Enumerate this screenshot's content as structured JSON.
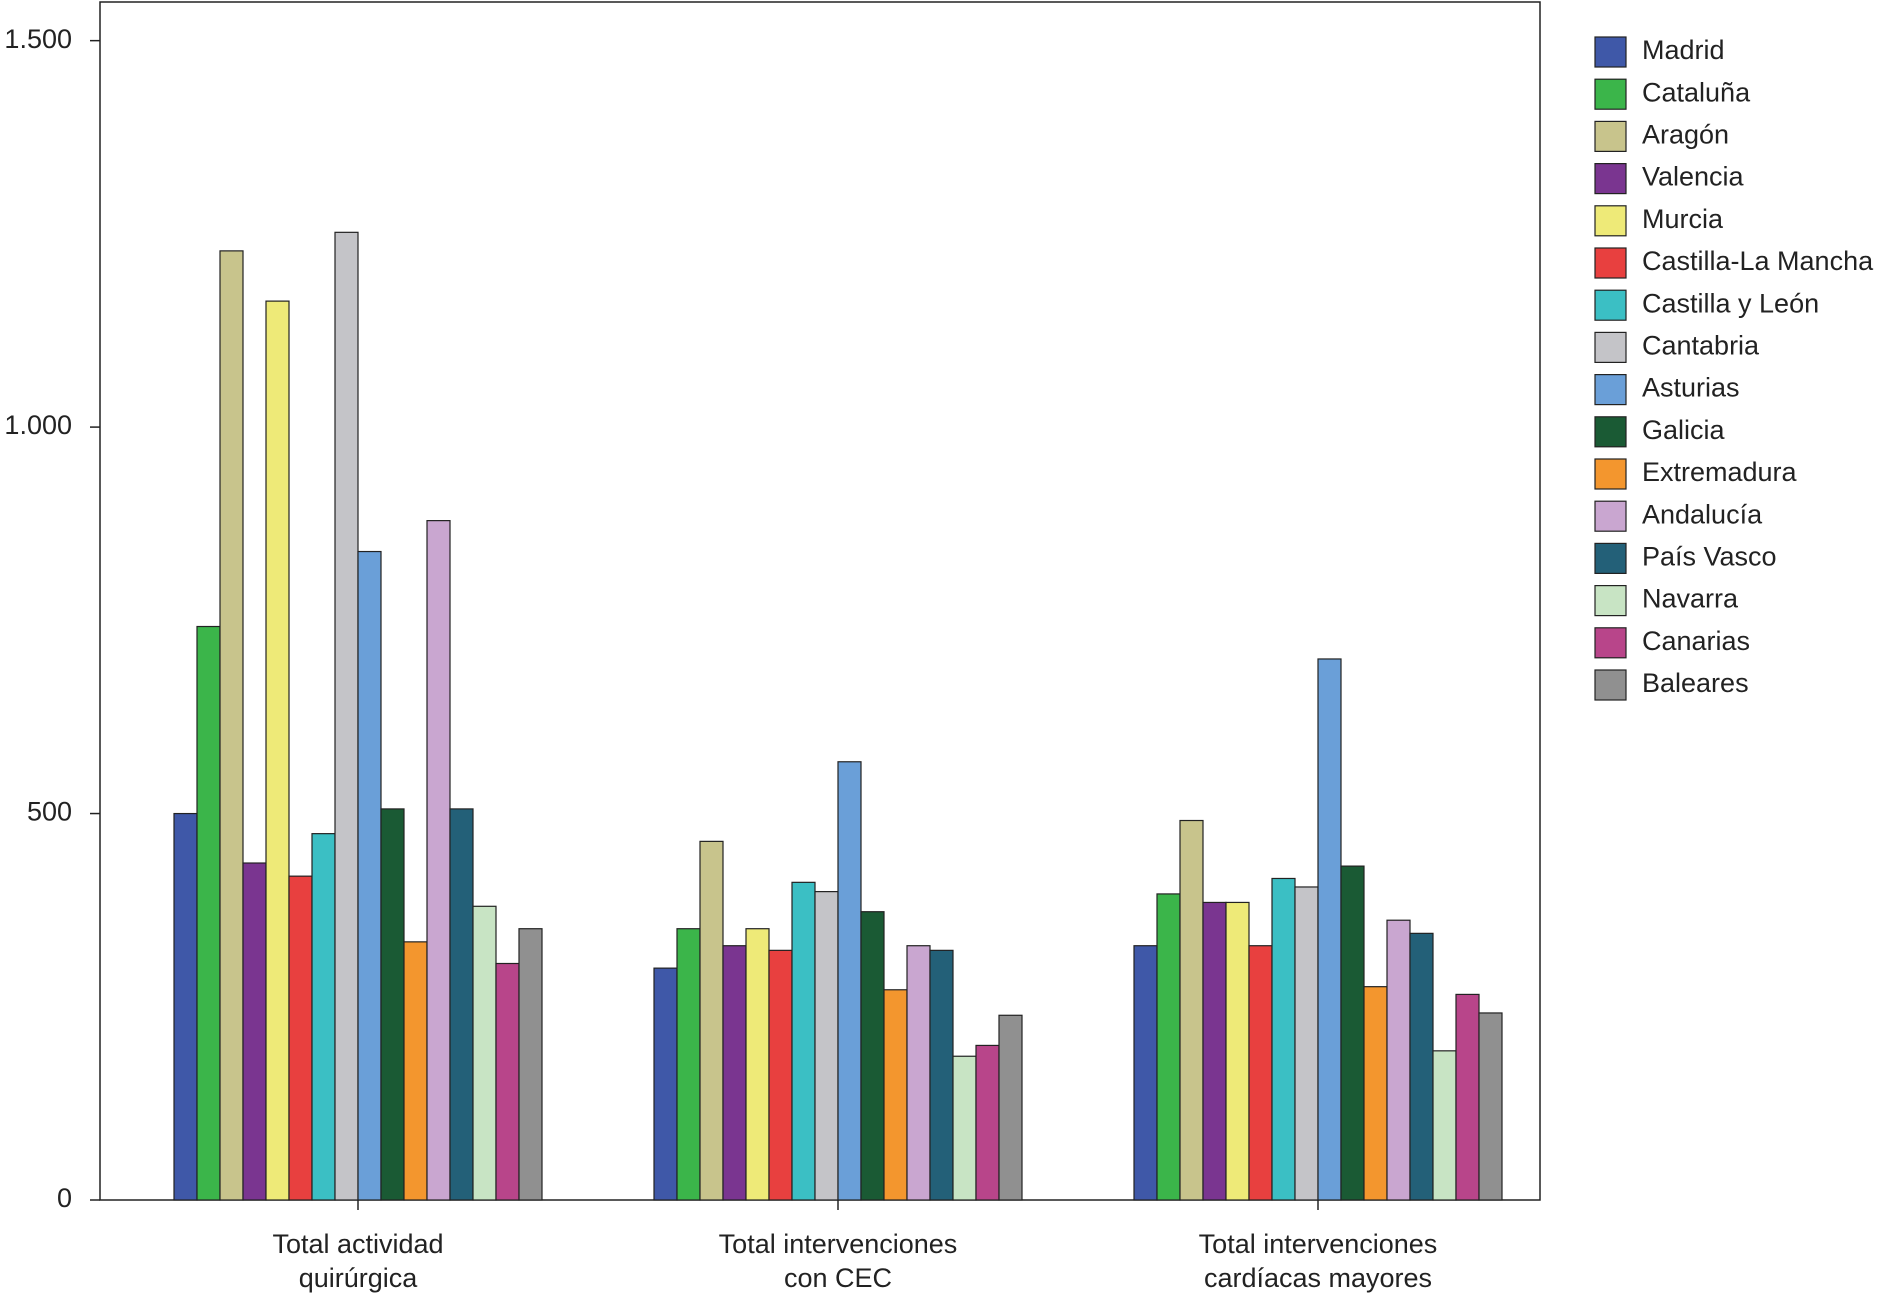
{
  "chart_data": {
    "type": "bar",
    "categories": [
      "Total actividad\nquirúrgica",
      "Total intervenciones\ncon CEC",
      "Total intervenciones\ncardíacas mayores"
    ],
    "series": [
      {
        "name": "Madrid",
        "color": "#3f58a8",
        "values": [
          500,
          300,
          329
        ]
      },
      {
        "name": "Cataluña",
        "color": "#3bb54a",
        "values": [
          742,
          351,
          396
        ]
      },
      {
        "name": "Aragón",
        "color": "#c8c48c",
        "values": [
          1228,
          464,
          491
        ]
      },
      {
        "name": "Valencia",
        "color": "#7a3590",
        "values": [
          436,
          329,
          385
        ]
      },
      {
        "name": "Murcia",
        "color": "#eeea78",
        "values": [
          1163,
          351,
          385
        ]
      },
      {
        "name": "Castilla-La Mancha",
        "color": "#e8403f",
        "values": [
          419,
          323,
          329
        ]
      },
      {
        "name": "Castilla y León",
        "color": "#3bbfc4",
        "values": [
          474,
          411,
          416
        ]
      },
      {
        "name": "Cantabria",
        "color": "#c4c4c8",
        "values": [
          1252,
          399,
          405
        ]
      },
      {
        "name": "Asturias",
        "color": "#6a9fd8",
        "values": [
          839,
          567,
          700
        ]
      },
      {
        "name": "Galicia",
        "color": "#1a5a34",
        "values": [
          506,
          373,
          432
        ]
      },
      {
        "name": "Extremadura",
        "color": "#f3962e",
        "values": [
          334,
          272,
          276
        ]
      },
      {
        "name": "Andalucía",
        "color": "#c9a6d0",
        "values": [
          879,
          329,
          362
        ]
      },
      {
        "name": "País Vasco",
        "color": "#236078",
        "values": [
          506,
          323,
          345
        ]
      },
      {
        "name": "Navarra",
        "color": "#c8e4c4",
        "values": [
          380,
          186,
          193
        ]
      },
      {
        "name": "Canarias",
        "color": "#b8458a",
        "values": [
          306,
          200,
          266
        ]
      },
      {
        "name": "Baleares",
        "color": "#909090",
        "values": [
          351,
          239,
          242
        ]
      }
    ],
    "ylim": [
      0,
      1550
    ],
    "yticks": [
      0,
      500,
      {
        "value": 1000,
        "label": "1.000"
      },
      {
        "value": 1500,
        "label": "1.500"
      }
    ],
    "grid": false,
    "legend": "right"
  }
}
